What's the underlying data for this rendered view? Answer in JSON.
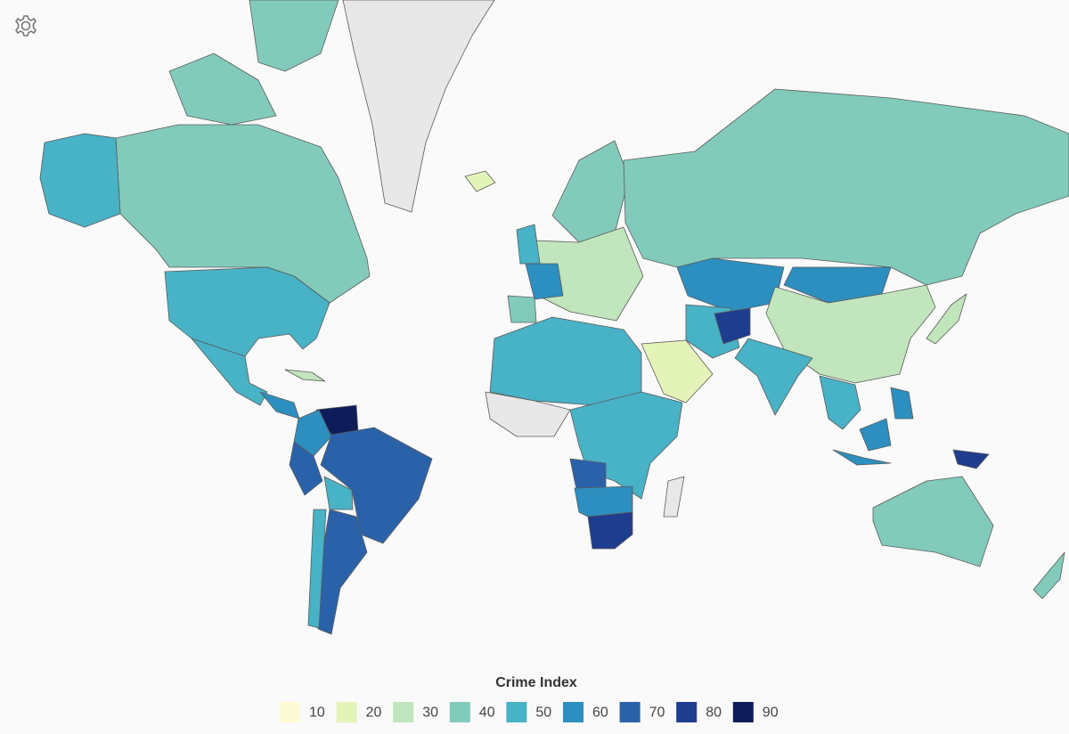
{
  "map": {
    "legend": {
      "title": "Crime Index",
      "items": [
        {
          "value": 10,
          "color": "#fdfbd3"
        },
        {
          "value": 20,
          "color": "#e4f3b8"
        },
        {
          "value": 30,
          "color": "#c1e5bc"
        },
        {
          "value": 40,
          "color": "#82cbbb"
        },
        {
          "value": 50,
          "color": "#48b2c6"
        },
        {
          "value": 60,
          "color": "#2c8fbf"
        },
        {
          "value": 70,
          "color": "#2a62aa"
        },
        {
          "value": 80,
          "color": "#1f3d8f"
        },
        {
          "value": 90,
          "color": "#0e1d5a"
        }
      ]
    }
  }
}
